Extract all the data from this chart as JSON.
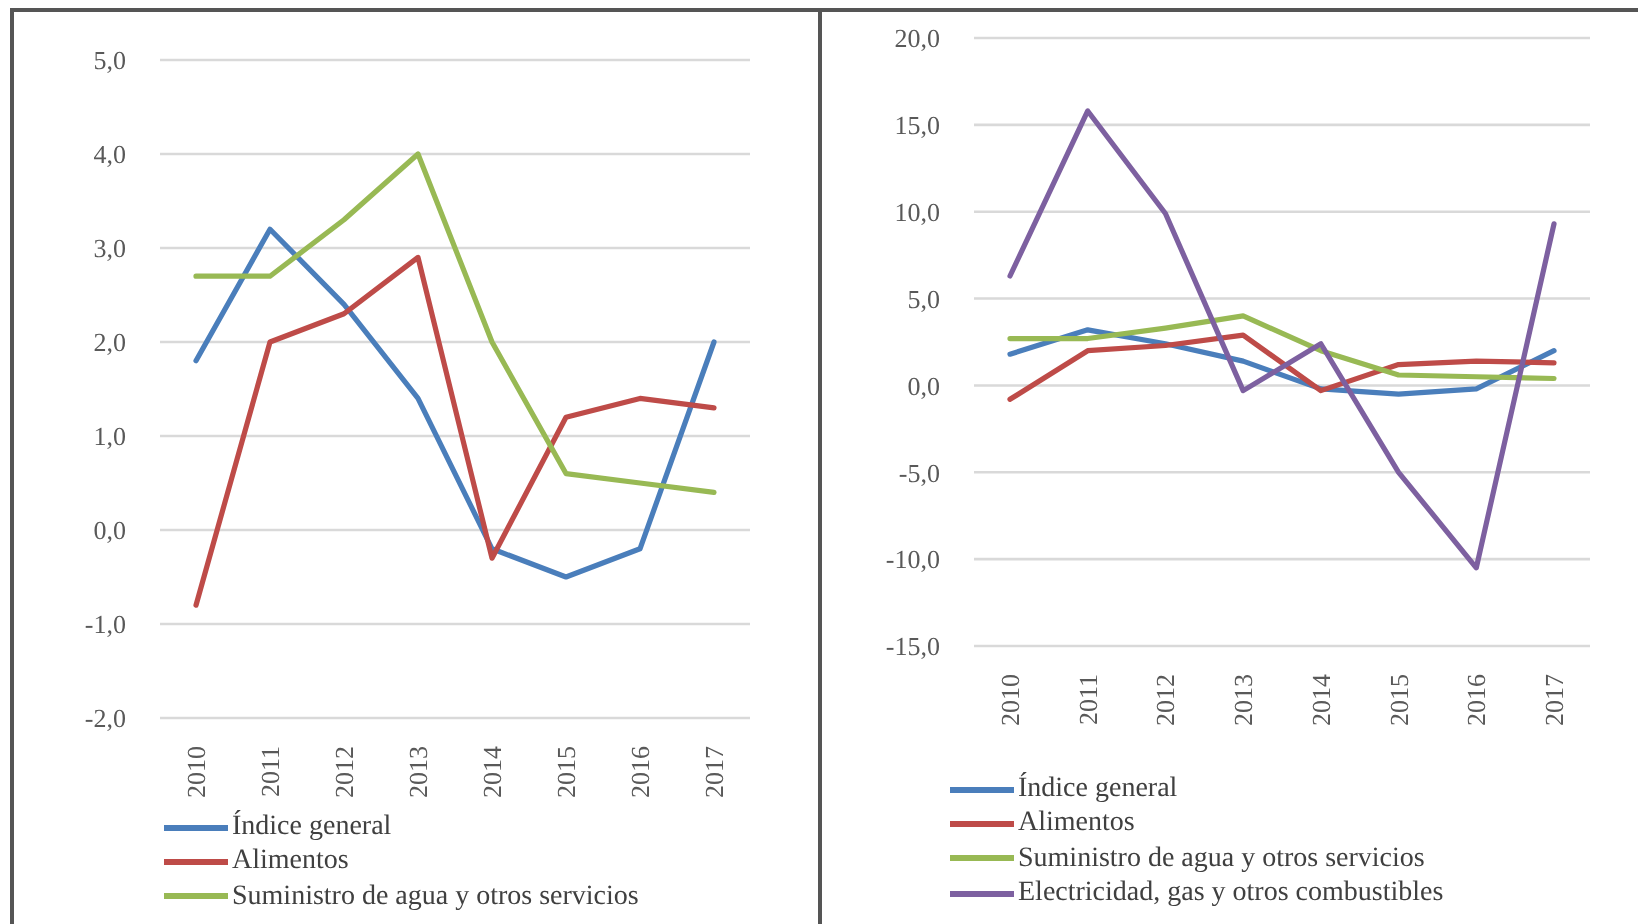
{
  "chart_data": [
    {
      "type": "line",
      "categories": [
        "2010",
        "2011",
        "2012",
        "2013",
        "2014",
        "2015",
        "2016",
        "2017"
      ],
      "series": [
        {
          "name": "Índice general",
          "color": "#4a7ebb",
          "values": [
            1.8,
            3.2,
            2.4,
            1.4,
            -0.2,
            -0.5,
            -0.2,
            2.0
          ]
        },
        {
          "name": "Alimentos",
          "color": "#be4b48",
          "values": [
            -0.8,
            2.0,
            2.3,
            2.9,
            -0.3,
            1.2,
            1.4,
            1.3
          ]
        },
        {
          "name": "Suministro de agua y otros servicios",
          "color": "#98b954",
          "values": [
            2.7,
            2.7,
            3.3,
            4.0,
            2.0,
            0.6,
            0.5,
            0.4
          ]
        }
      ],
      "ylim": [
        -2,
        5
      ],
      "yticks": [
        {
          "value": -2,
          "label": "-2,0"
        },
        {
          "value": -1,
          "label": "-1,0"
        },
        {
          "value": 0,
          "label": "0,0"
        },
        {
          "value": 1,
          "label": "1,0"
        },
        {
          "value": 2,
          "label": "2,0"
        },
        {
          "value": 3,
          "label": "3,0"
        },
        {
          "value": 4,
          "label": "4,0"
        },
        {
          "value": 5,
          "label": "5,0"
        }
      ],
      "grid": "y",
      "legend": "bottom"
    },
    {
      "type": "line",
      "categories": [
        "2010",
        "2011",
        "2012",
        "2013",
        "2014",
        "2015",
        "2016",
        "2017"
      ],
      "series": [
        {
          "name": "Índice general",
          "color": "#4a7ebb",
          "values": [
            1.8,
            3.2,
            2.4,
            1.4,
            -0.2,
            -0.5,
            -0.2,
            2.0
          ]
        },
        {
          "name": "Alimentos",
          "color": "#be4b48",
          "values": [
            -0.8,
            2.0,
            2.3,
            2.9,
            -0.3,
            1.2,
            1.4,
            1.3
          ]
        },
        {
          "name": "Suministro de agua y otros servicios",
          "color": "#98b954",
          "values": [
            2.7,
            2.7,
            3.3,
            4.0,
            2.0,
            0.6,
            0.5,
            0.4
          ]
        },
        {
          "name": "Electricidad, gas y otros combustibles",
          "color": "#7d60a0",
          "values": [
            6.3,
            15.8,
            9.9,
            -0.3,
            2.4,
            -5.0,
            -10.5,
            9.3
          ]
        }
      ],
      "ylim": [
        -15,
        20
      ],
      "yticks": [
        {
          "value": -15,
          "label": "-15,0"
        },
        {
          "value": -10,
          "label": "-10,0"
        },
        {
          "value": -5,
          "label": "-5,0"
        },
        {
          "value": 0,
          "label": "0,0"
        },
        {
          "value": 5,
          "label": "5,0"
        },
        {
          "value": 10,
          "label": "10,0"
        },
        {
          "value": 15,
          "label": "15,0"
        },
        {
          "value": 20,
          "label": "20,0"
        }
      ],
      "grid": "y",
      "legend": "bottom"
    }
  ]
}
